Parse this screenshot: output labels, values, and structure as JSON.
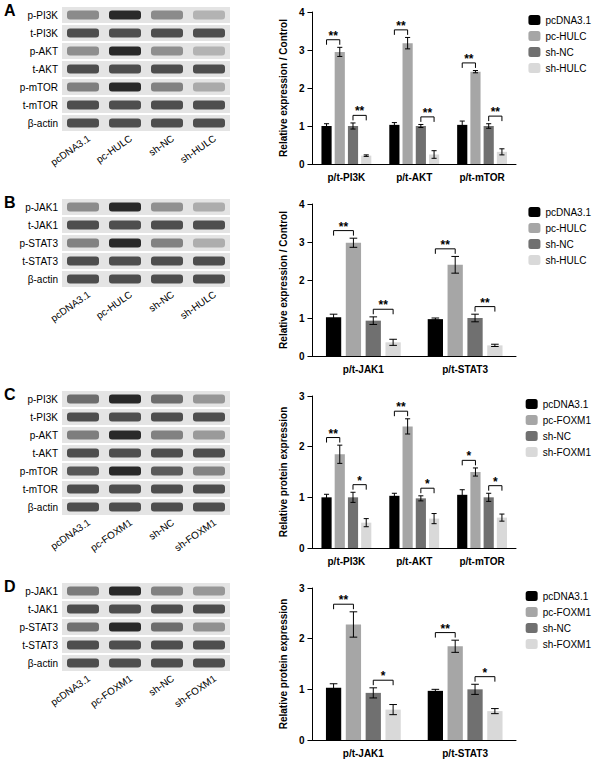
{
  "chart_data": [
    {
      "type": "bar",
      "title": "A",
      "blot": {
        "rows": [
          "p-PI3K",
          "t-PI3K",
          "p-AKT",
          "t-AKT",
          "p-mTOR",
          "t-mTOR",
          "β-actin"
        ],
        "lanes": [
          "pcDNA3.1",
          "pc-HULC",
          "sh-NC",
          "sh-HULC"
        ]
      },
      "categories": [
        "p/t-PI3K",
        "p/t-AKT",
        "p/t-mTOR"
      ],
      "y_label": "Relative expression / Control",
      "ylim": [
        0,
        4
      ],
      "yticks": [
        0,
        1,
        2,
        3,
        4
      ],
      "series": [
        {
          "name": "pcDNA3.1",
          "color": "#000000",
          "values": [
            1.0,
            1.03,
            1.03
          ],
          "errors": [
            0.06,
            0.06,
            0.1
          ]
        },
        {
          "name": "pc-HULC",
          "color": "#a6a6a6",
          "values": [
            2.95,
            3.18,
            2.43
          ],
          "errors": [
            0.12,
            0.15,
            0.03
          ]
        },
        {
          "name": "sh-NC",
          "color": "#707070",
          "values": [
            1.0,
            1.0,
            1.0
          ],
          "errors": [
            0.08,
            0.04,
            0.06
          ]
        },
        {
          "name": "sh-HULC",
          "color": "#d9d9d9",
          "values": [
            0.22,
            0.25,
            0.32
          ],
          "errors": [
            0.02,
            0.1,
            0.08
          ]
        }
      ],
      "annotations": [
        {
          "category": "p/t-PI3K",
          "from": "pcDNA3.1",
          "to": "pc-HULC",
          "label": "**"
        },
        {
          "category": "p/t-PI3K",
          "from": "sh-NC",
          "to": "sh-HULC",
          "label": "**"
        },
        {
          "category": "p/t-AKT",
          "from": "pcDNA3.1",
          "to": "pc-HULC",
          "label": "**"
        },
        {
          "category": "p/t-AKT",
          "from": "sh-NC",
          "to": "sh-HULC",
          "label": "**"
        },
        {
          "category": "p/t-mTOR",
          "from": "pcDNA3.1",
          "to": "pc-HULC",
          "label": "**"
        },
        {
          "category": "p/t-mTOR",
          "from": "sh-NC",
          "to": "sh-HULC",
          "label": "**"
        }
      ]
    },
    {
      "type": "bar",
      "title": "B",
      "blot": {
        "rows": [
          "p-JAK1",
          "t-JAK1",
          "p-STAT3",
          "t-STAT3",
          "β-actin"
        ],
        "lanes": [
          "pcDNA3.1",
          "pc-HULC",
          "sh-NC",
          "sh-HULC"
        ]
      },
      "categories": [
        "p/t-JAK1",
        "p/t-STAT3"
      ],
      "y_label": "Relative expression / Control",
      "ylim": [
        0,
        4
      ],
      "yticks": [
        0,
        1,
        2,
        3,
        4
      ],
      "series": [
        {
          "name": "pcDNA3.1",
          "color": "#000000",
          "values": [
            1.02,
            0.97
          ],
          "errors": [
            0.08,
            0.03
          ]
        },
        {
          "name": "pc-HULC",
          "color": "#a6a6a6",
          "values": [
            2.98,
            2.4
          ],
          "errors": [
            0.12,
            0.22
          ]
        },
        {
          "name": "sh-NC",
          "color": "#707070",
          "values": [
            0.93,
            1.0
          ],
          "errors": [
            0.1,
            0.1
          ]
        },
        {
          "name": "sh-HULC",
          "color": "#d9d9d9",
          "values": [
            0.36,
            0.28
          ],
          "errors": [
            0.08,
            0.03
          ]
        }
      ],
      "annotations": [
        {
          "category": "p/t-JAK1",
          "from": "pcDNA3.1",
          "to": "pc-HULC",
          "label": "**"
        },
        {
          "category": "p/t-JAK1",
          "from": "sh-NC",
          "to": "sh-HULC",
          "label": "**"
        },
        {
          "category": "p/t-STAT3",
          "from": "pcDNA3.1",
          "to": "pc-HULC",
          "label": "**"
        },
        {
          "category": "p/t-STAT3",
          "from": "sh-NC",
          "to": "sh-HULC",
          "label": "**"
        }
      ]
    },
    {
      "type": "bar",
      "title": "C",
      "blot": {
        "rows": [
          "p-PI3K",
          "t-PI3K",
          "p-AKT",
          "t-AKT",
          "p-mTOR",
          "t-mTOR",
          "β-actin"
        ],
        "lanes": [
          "pcDNA3.1",
          "pc-FOXM1",
          "sh-NC",
          "sh-FOXM1"
        ]
      },
      "categories": [
        "p/t-PI3K",
        "p/t-AKT",
        "p/t-mTOR"
      ],
      "y_label": "Relative protein expression",
      "ylim": [
        0,
        3
      ],
      "yticks": [
        0,
        1,
        2,
        3
      ],
      "series": [
        {
          "name": "pcDNA3.1",
          "color": "#000000",
          "values": [
            1.0,
            1.03,
            1.05
          ],
          "errors": [
            0.06,
            0.05,
            0.1
          ]
        },
        {
          "name": "pc-FOXM1",
          "color": "#a6a6a6",
          "values": [
            1.85,
            2.4,
            1.5
          ],
          "errors": [
            0.18,
            0.15,
            0.08
          ]
        },
        {
          "name": "sh-NC",
          "color": "#707070",
          "values": [
            1.0,
            0.98,
            1.0
          ],
          "errors": [
            0.1,
            0.05,
            0.08
          ]
        },
        {
          "name": "sh-FOXM1",
          "color": "#d9d9d9",
          "values": [
            0.5,
            0.58,
            0.6
          ],
          "errors": [
            0.08,
            0.1,
            0.07
          ]
        }
      ],
      "annotations": [
        {
          "category": "p/t-PI3K",
          "from": "pcDNA3.1",
          "to": "pc-FOXM1",
          "label": "**"
        },
        {
          "category": "p/t-PI3K",
          "from": "sh-NC",
          "to": "sh-FOXM1",
          "label": "*"
        },
        {
          "category": "p/t-AKT",
          "from": "pcDNA3.1",
          "to": "pc-FOXM1",
          "label": "**"
        },
        {
          "category": "p/t-AKT",
          "from": "sh-NC",
          "to": "sh-FOXM1",
          "label": "*"
        },
        {
          "category": "p/t-mTOR",
          "from": "pcDNA3.1",
          "to": "pc-FOXM1",
          "label": "*"
        },
        {
          "category": "p/t-mTOR",
          "from": "sh-NC",
          "to": "sh-FOXM1",
          "label": "*"
        }
      ]
    },
    {
      "type": "bar",
      "title": "D",
      "blot": {
        "rows": [
          "p-JAK1",
          "t-JAK1",
          "p-STAT3",
          "t-STAT3",
          "β-actin"
        ],
        "lanes": [
          "pcDNA3.1",
          "pc-FOXM1",
          "sh-NC",
          "sh-FOXM1"
        ]
      },
      "categories": [
        "p/t-JAK1",
        "p/t-STAT3"
      ],
      "y_label": "Relative protein expression",
      "ylim": [
        0,
        3
      ],
      "yticks": [
        0,
        1,
        2,
        3
      ],
      "series": [
        {
          "name": "pcDNA3.1",
          "color": "#000000",
          "values": [
            1.03,
            0.97
          ],
          "errors": [
            0.08,
            0.03
          ]
        },
        {
          "name": "pc-FOXM1",
          "color": "#a6a6a6",
          "values": [
            2.28,
            1.85
          ],
          "errors": [
            0.25,
            0.12
          ]
        },
        {
          "name": "sh-NC",
          "color": "#707070",
          "values": [
            0.93,
            1.0
          ],
          "errors": [
            0.1,
            0.1
          ]
        },
        {
          "name": "sh-FOXM1",
          "color": "#d9d9d9",
          "values": [
            0.6,
            0.57
          ],
          "errors": [
            0.1,
            0.05
          ]
        }
      ],
      "annotations": [
        {
          "category": "p/t-JAK1",
          "from": "pcDNA3.1",
          "to": "pc-FOXM1",
          "label": "**"
        },
        {
          "category": "p/t-JAK1",
          "from": "sh-NC",
          "to": "sh-FOXM1",
          "label": "*"
        },
        {
          "category": "p/t-STAT3",
          "from": "pcDNA3.1",
          "to": "pc-FOXM1",
          "label": "**"
        },
        {
          "category": "p/t-STAT3",
          "from": "sh-NC",
          "to": "sh-FOXM1",
          "label": "*"
        }
      ]
    }
  ]
}
